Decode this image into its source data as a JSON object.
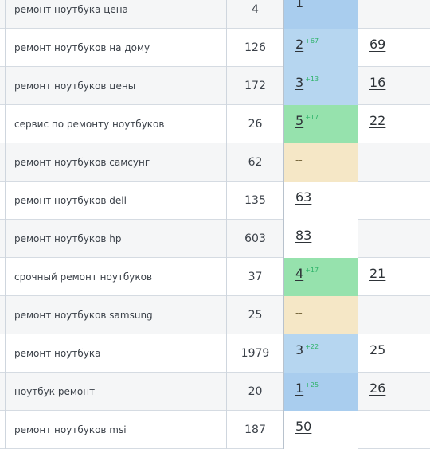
{
  "colors": {
    "top1_blue": "#a9cdee",
    "top3_blue": "#b6d6f0",
    "top5_green": "#96e2ad",
    "not_found_yellow": "#f5e7c6",
    "change_green": "#2fb36a",
    "grid_line": "#d5dbe2"
  },
  "rows": [
    {
      "keyword": "ремонт ноутбука цена",
      "frequency": "4",
      "position": "1",
      "change": "",
      "position_bg": "top1_blue",
      "url_position": ""
    },
    {
      "keyword": "ремонт ноутбуков на дому",
      "frequency": "126",
      "position": "2",
      "change": "+67",
      "position_bg": "top3_blue",
      "url_position": "69"
    },
    {
      "keyword": "ремонт ноутбуков цены",
      "frequency": "172",
      "position": "3",
      "change": "+13",
      "position_bg": "top3_blue",
      "url_position": "16"
    },
    {
      "keyword": "сервис по ремонту ноутбуков",
      "frequency": "26",
      "position": "5",
      "change": "+17",
      "position_bg": "top5_green",
      "url_position": "22"
    },
    {
      "keyword": "ремонт ноутбуков самсунг",
      "frequency": "62",
      "position": "--",
      "change": "",
      "position_bg": "not_found_yellow",
      "url_position": ""
    },
    {
      "keyword": "ремонт ноутбуков dell",
      "frequency": "135",
      "position": "63",
      "change": "",
      "position_bg": "white",
      "url_position": ""
    },
    {
      "keyword": "ремонт ноутбуков hp",
      "frequency": "603",
      "position": "83",
      "change": "",
      "position_bg": "white",
      "url_position": ""
    },
    {
      "keyword": "срочный ремонт ноутбуков",
      "frequency": "37",
      "position": "4",
      "change": "+17",
      "position_bg": "top5_green",
      "url_position": "21"
    },
    {
      "keyword": "ремонт ноутбуков samsung",
      "frequency": "25",
      "position": "--",
      "change": "",
      "position_bg": "not_found_yellow",
      "url_position": ""
    },
    {
      "keyword": "ремонт ноутбука",
      "frequency": "1979",
      "position": "3",
      "change": "+22",
      "position_bg": "top3_blue",
      "url_position": "25"
    },
    {
      "keyword": "ноутбук ремонт",
      "frequency": "20",
      "position": "1",
      "change": "+25",
      "position_bg": "top1_blue",
      "url_position": "26"
    },
    {
      "keyword": "ремонт ноутбуков msi",
      "frequency": "187",
      "position": "50",
      "change": "",
      "position_bg": "white",
      "url_position": ""
    }
  ]
}
